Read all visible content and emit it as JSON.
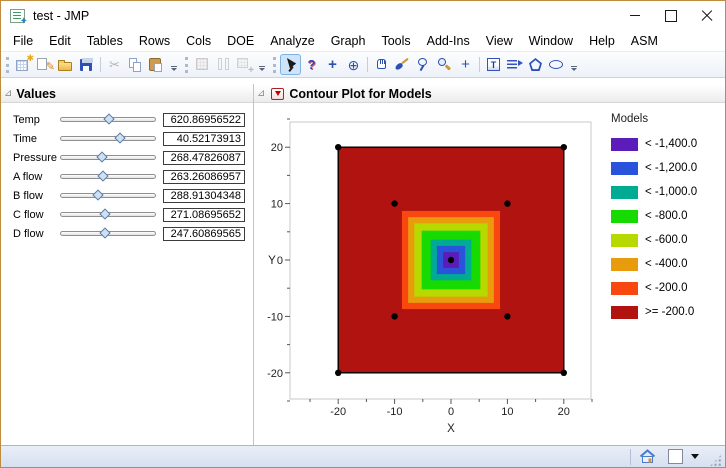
{
  "window": {
    "title": "test - JMP",
    "controls": [
      "minimize",
      "maximize",
      "close"
    ]
  },
  "menu": {
    "items": [
      "File",
      "Edit",
      "Tables",
      "Rows",
      "Cols",
      "DOE",
      "Analyze",
      "Graph",
      "Tools",
      "Add-Ins",
      "View",
      "Window",
      "Help",
      "ASM"
    ]
  },
  "toolbar": {
    "groups": [
      {
        "icons": [
          "new-data-table",
          "new-script",
          "open",
          "save",
          "|",
          "cut",
          "copy",
          "paste"
        ],
        "disabled_icons": [
          "cut"
        ]
      },
      {
        "icons": [
          "data-table",
          "columns",
          "add-rows"
        ],
        "disabled": true
      },
      {
        "icons": [
          "arrow-cursor",
          "help",
          "move",
          "target",
          "|",
          "grabber",
          "brush",
          "lasso",
          "magnifier",
          "crosshair",
          "|",
          "annotate",
          "line-annotation",
          "polygon",
          "oval"
        ],
        "active": "arrow-cursor"
      }
    ]
  },
  "values_panel": {
    "title": "Values",
    "sliders": [
      {
        "label": "Temp",
        "value": "620.86956522",
        "pos": 0.52
      },
      {
        "label": "Time",
        "value": "40.52173913",
        "pos": 0.64
      },
      {
        "label": "Pressure",
        "value": "268.47826087",
        "pos": 0.45
      },
      {
        "label": "A flow",
        "value": "263.26086957",
        "pos": 0.46
      },
      {
        "label": "B flow",
        "value": "288.91304348",
        "pos": 0.4
      },
      {
        "label": "C flow",
        "value": "271.08695652",
        "pos": 0.48
      },
      {
        "label": "D flow",
        "value": "247.60869565",
        "pos": 0.48
      }
    ]
  },
  "plot_panel": {
    "title": "Contour Plot for Models",
    "legend": {
      "title": "Models",
      "entries": [
        {
          "label": "< -1,400.0",
          "color": "#5c1cba"
        },
        {
          "label": "< -1,200.0",
          "color": "#2853da"
        },
        {
          "label": "< -1,000.0",
          "color": "#00ab93"
        },
        {
          "label": "< -800.0",
          "color": "#16da00"
        },
        {
          "label": "< -600.0",
          "color": "#b8d900"
        },
        {
          "label": "< -400.0",
          "color": "#e89b0d"
        },
        {
          "label": "< -200.0",
          "color": "#f8480f"
        },
        {
          "label": ">= -200.0",
          "color": "#b01310"
        }
      ]
    }
  },
  "chart_data": {
    "type": "contour",
    "xlabel": "X",
    "ylabel": "Y",
    "x_ticks": [
      -20,
      -10,
      0,
      10,
      20
    ],
    "y_ticks": [
      20,
      10,
      0,
      -10,
      -20
    ],
    "minor_tick_step": 5,
    "minor_tick_range": [
      -25,
      25
    ],
    "domain": {
      "half_width": 20,
      "color": "#b01310",
      "border": "#000000"
    },
    "bands": [
      {
        "level": "< -200.0",
        "half_width": 8.7,
        "color": "#f8480f"
      },
      {
        "level": "< -400.0",
        "half_width": 7.6,
        "color": "#e89b0d"
      },
      {
        "level": "< -600.0",
        "half_width": 6.5,
        "color": "#b8d900"
      },
      {
        "level": "< -800.0",
        "half_width": 5.2,
        "color": "#16da00"
      },
      {
        "level": "< -1,000.0",
        "half_width": 3.6,
        "color": "#00ab93"
      },
      {
        "level": "< -1,200.0",
        "half_width": 2.5,
        "color": "#2853da"
      },
      {
        "level": "< -1,400.0",
        "half_width": 1.4,
        "color": "#5c1cba"
      }
    ],
    "points": [
      [
        -20,
        20
      ],
      [
        20,
        20
      ],
      [
        -10,
        10
      ],
      [
        10,
        10
      ],
      [
        0,
        0
      ],
      [
        -10,
        -10
      ],
      [
        10,
        -10
      ],
      [
        -20,
        -20
      ],
      [
        20,
        -20
      ]
    ]
  },
  "statusbar": {
    "icons": [
      "home",
      "color-well",
      "dropdown"
    ]
  }
}
